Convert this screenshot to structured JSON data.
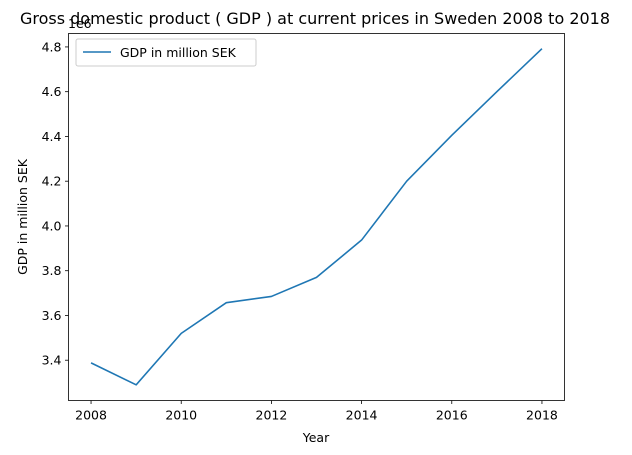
{
  "chart_data": {
    "type": "line",
    "title": "Gross domestic product ( GDP ) at current prices in Sweden 2008 to 2018",
    "xlabel": "Year",
    "ylabel": "GDP in million SEK",
    "y_offset_label": "1e6",
    "x": [
      2008,
      2009,
      2010,
      2011,
      2012,
      2013,
      2014,
      2015,
      2016,
      2017,
      2018
    ],
    "series": [
      {
        "name": "GDP in million SEK",
        "color": "#1f77b4",
        "values": [
          3388000,
          3290000,
          3520000,
          3657000,
          3685000,
          3770000,
          3937000,
          4200000,
          4405000,
          4600000,
          4792000
        ]
      }
    ],
    "xlim": [
      2007.5,
      2018.5
    ],
    "ylim": [
      3.22,
      4.86
    ],
    "x_ticks": [
      2008,
      2010,
      2012,
      2014,
      2016,
      2018
    ],
    "y_ticks": [
      3.4,
      3.6,
      3.8,
      4.0,
      4.2,
      4.4,
      4.6,
      4.8
    ],
    "y_tick_labels": [
      "3.4",
      "3.6",
      "3.8",
      "4.0",
      "4.2",
      "4.4",
      "4.6",
      "4.8"
    ],
    "grid": false,
    "legend_position": "upper-left"
  }
}
